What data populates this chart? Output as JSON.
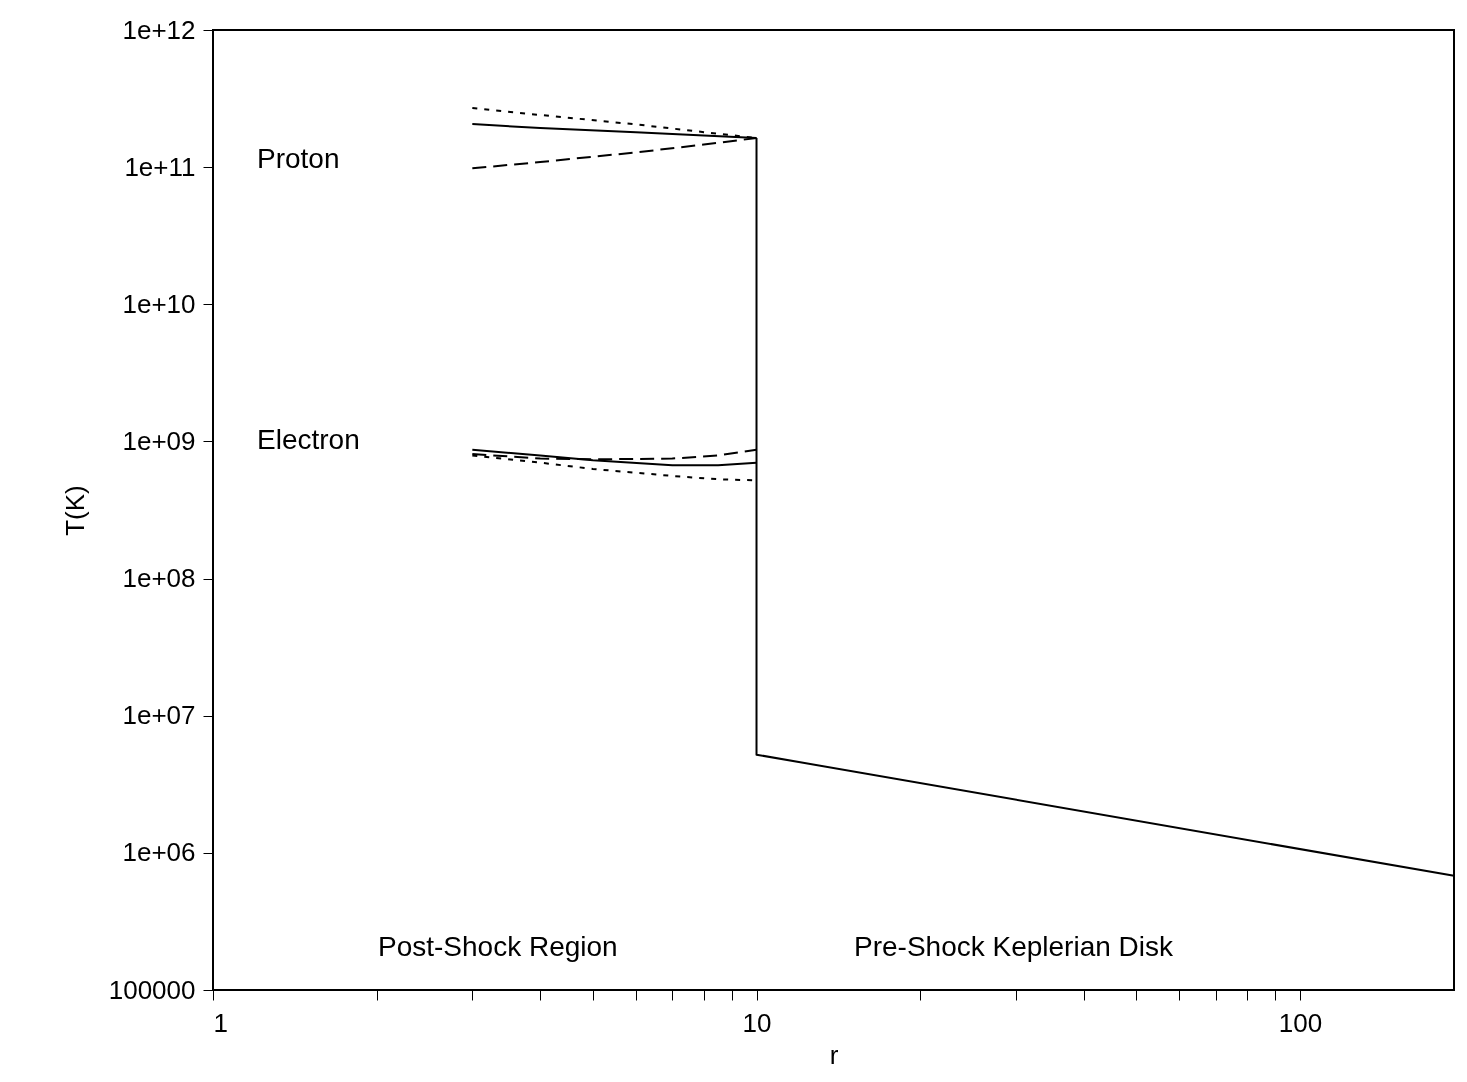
{
  "chart_data": {
    "type": "line",
    "xlabel": "r",
    "ylabel": "T(K)",
    "log": "xy",
    "grid": false,
    "marker": "none",
    "xlim": [
      1,
      192
    ],
    "ylim": [
      100000,
      1000000000000
    ],
    "xticks": [
      1,
      {
        "value": 2,
        "label": null
      },
      {
        "value": 3,
        "label": null
      },
      {
        "value": 4,
        "label": null
      },
      {
        "value": 5,
        "label": null
      },
      {
        "value": 6,
        "label": null
      },
      {
        "value": 7,
        "label": null
      },
      {
        "value": 8,
        "label": null
      },
      {
        "value": 9,
        "label": null
      },
      10,
      {
        "value": 20,
        "label": null
      },
      {
        "value": 30,
        "label": null
      },
      {
        "value": 40,
        "label": null
      },
      {
        "value": 50,
        "label": null
      },
      {
        "value": 60,
        "label": null
      },
      {
        "value": 70,
        "label": null
      },
      {
        "value": 80,
        "label": null
      },
      {
        "value": 90,
        "label": null
      },
      100
    ],
    "yticks": [
      100000,
      {
        "value": 1000000,
        "label": "1e+06"
      },
      {
        "value": 10000000,
        "label": "1e+07"
      },
      {
        "value": 100000000,
        "label": "1e+08"
      },
      {
        "value": 1000000000,
        "label": "1e+09"
      },
      {
        "value": 10000000000,
        "label": "1e+10"
      },
      {
        "value": 100000000000,
        "label": "1e+11"
      },
      {
        "value": 1000000000000,
        "label": "1e+12"
      }
    ],
    "series": [
      {
        "color": "#000000",
        "line_style": "solid",
        "x": [
          3,
          4,
          6,
          8,
          10
        ],
        "values": [
          206000000000,
          193000000000,
          180000000000,
          170000000000,
          163000000000
        ]
      },
      {
        "color": "#000000",
        "line_style": "dotted",
        "x": [
          3,
          4,
          6,
          8,
          10
        ],
        "values": [
          270000000000,
          240000000000,
          205000000000,
          180000000000,
          163000000000
        ]
      },
      {
        "color": "#000000",
        "line_style": "dashed",
        "x": [
          3,
          4,
          6,
          8,
          10
        ],
        "values": [
          98000000000,
          109000000000,
          128000000000,
          146000000000,
          163000000000
        ]
      },
      {
        "color": "#000000",
        "line_style": "solid",
        "x": [
          3,
          4,
          5,
          7,
          8.5,
          10
        ],
        "values": [
          870000000,
          790000000,
          730000000,
          670000000,
          670000000,
          700000000
        ]
      },
      {
        "color": "#000000",
        "line_style": "dashed",
        "x": [
          3,
          4,
          5,
          7,
          8.5,
          10
        ],
        "values": [
          810000000,
          750000000,
          740000000,
          750000000,
          790000000,
          870000000
        ]
      },
      {
        "color": "#000000",
        "line_style": "dotted",
        "x": [
          3,
          4,
          5,
          7,
          8.5,
          10
        ],
        "values": [
          790000000,
          700000000,
          630000000,
          560000000,
          530000000,
          520000000
        ]
      },
      {
        "color": "#000000",
        "line_style": "solid",
        "x": [
          10,
          10,
          192
        ],
        "values": [
          163000000000,
          5200000,
          680000
        ]
      }
    ],
    "annotations": [
      "Proton",
      "Electron",
      "Post-Shock Region",
      "Pre-Shock Keplerian Disk"
    ]
  }
}
